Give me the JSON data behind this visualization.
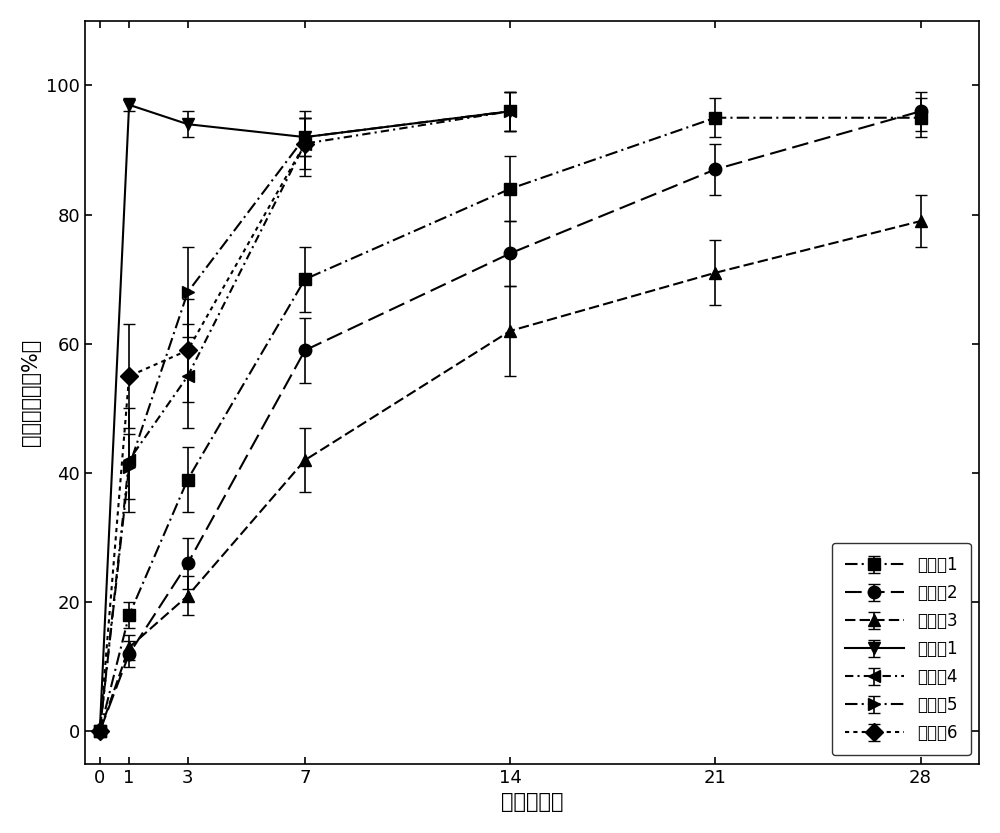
{
  "x": [
    0,
    1,
    3,
    7,
    14,
    21,
    28
  ],
  "series": [
    {
      "label": "实施例1",
      "y": [
        0,
        18,
        39,
        70,
        84,
        95,
        95
      ],
      "yerr": [
        0,
        2,
        5,
        5,
        5,
        3,
        3
      ],
      "marker": "s",
      "linestyle": "-.",
      "color": "#000000",
      "dashes": [
        6,
        2,
        1,
        2
      ]
    },
    {
      "label": "实施例2",
      "y": [
        0,
        12,
        26,
        59,
        74,
        87,
        96
      ],
      "yerr": [
        0,
        2,
        4,
        5,
        5,
        4,
        3
      ],
      "marker": "o",
      "linestyle": "--",
      "color": "#000000",
      "dashes": [
        8,
        3
      ]
    },
    {
      "label": "实施例3",
      "y": [
        0,
        13,
        21,
        42,
        62,
        71,
        79
      ],
      "yerr": [
        0,
        2,
        3,
        5,
        7,
        5,
        4
      ],
      "marker": "^",
      "linestyle": "--",
      "color": "#000000",
      "dashes": [
        5,
        2
      ]
    },
    {
      "label": "比较例1",
      "y": [
        0,
        97,
        94,
        92,
        96,
        null,
        null
      ],
      "yerr": [
        0,
        1,
        2,
        3,
        3,
        null,
        null
      ],
      "marker": "v",
      "linestyle": "-",
      "color": "#000000",
      "dashes": null
    },
    {
      "label": "比较例4",
      "y": [
        0,
        42,
        55,
        91,
        96,
        null,
        null
      ],
      "yerr": [
        0,
        8,
        8,
        4,
        3,
        null,
        null
      ],
      "marker": "<",
      "linestyle": "-.",
      "color": "#000000",
      "dashes": [
        4,
        2,
        1,
        2
      ]
    },
    {
      "label": "比较例5",
      "y": [
        0,
        41,
        68,
        92,
        96,
        null,
        null
      ],
      "yerr": [
        0,
        5,
        7,
        3,
        3,
        null,
        null
      ],
      "marker": ">",
      "linestyle": "-.",
      "color": "#000000",
      "dashes": [
        6,
        2,
        1,
        2
      ]
    },
    {
      "label": "比较例6",
      "y": [
        0,
        55,
        59,
        91,
        null,
        null,
        null
      ],
      "yerr": [
        0,
        8,
        8,
        5,
        null,
        null,
        null
      ],
      "marker": "D",
      "linestyle": ":",
      "color": "#000000",
      "dashes": [
        2,
        2
      ]
    }
  ],
  "xlabel": "时间（天）",
  "ylabel": "累积释放量（%）",
  "xlim": [
    -0.5,
    30
  ],
  "ylim": [
    -5,
    110
  ],
  "xticks": [
    0,
    1,
    3,
    7,
    14,
    21,
    28
  ],
  "yticks": [
    0,
    20,
    40,
    60,
    80,
    100
  ],
  "legend_loc": "lower right",
  "background_color": "#ffffff",
  "font_size": 15,
  "tick_fontsize": 13
}
